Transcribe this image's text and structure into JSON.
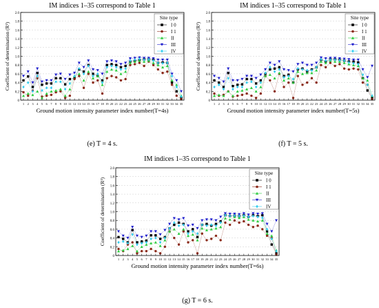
{
  "figure": {
    "panels": [
      {
        "caption": "(e) T = 4 s."
      },
      {
        "caption": "(f) T = 5 s."
      },
      {
        "caption": "(g) T = 6 s."
      }
    ]
  },
  "chart_data": [
    {
      "type": "line",
      "title": "IM indices 1–35 correspond to Table 1",
      "xlabel": "Ground motion intensity parameter index number(T=4s)",
      "ylabel": "Coefficient of determination (R²)",
      "ylim": [
        0,
        2.0
      ],
      "yticks": [
        "0",
        "0.2",
        "0.4",
        "0.6",
        "0.8",
        "1.0",
        "1.2",
        "1.4",
        "1.6",
        "1.8",
        "2.0"
      ],
      "legend": {
        "title": "Site type",
        "placement": "top-right"
      },
      "x": [
        1,
        2,
        3,
        4,
        5,
        6,
        7,
        8,
        9,
        10,
        11,
        12,
        13,
        14,
        15,
        16,
        17,
        18,
        19,
        20,
        21,
        22,
        23,
        24,
        25,
        26,
        27,
        28,
        29,
        30,
        31,
        32,
        33,
        34,
        35
      ],
      "series": [
        {
          "name": "I 0",
          "marker": "square",
          "color": "#000000",
          "values": [
            0.45,
            0.54,
            0.3,
            0.62,
            0.35,
            0.38,
            0.38,
            0.5,
            0.5,
            0.36,
            0.48,
            0.5,
            0.7,
            0.65,
            0.8,
            0.6,
            0.55,
            0.45,
            0.8,
            0.82,
            0.8,
            0.75,
            0.78,
            0.88,
            0.9,
            0.92,
            0.93,
            0.93,
            0.92,
            0.85,
            0.86,
            0.85,
            0.4,
            0.2,
            0.05
          ]
        },
        {
          "name": "I 1",
          "marker": "circle",
          "color": "#8b2a1a",
          "values": [
            0.18,
            0.1,
            0.22,
            0.5,
            0.08,
            0.1,
            0.12,
            0.18,
            0.2,
            0.05,
            0.1,
            0.48,
            0.55,
            0.28,
            0.6,
            0.4,
            0.45,
            0.15,
            0.5,
            0.55,
            0.52,
            0.45,
            0.48,
            0.8,
            0.82,
            0.85,
            0.78,
            0.88,
            0.8,
            0.7,
            0.62,
            0.65,
            0.35,
            0.1,
            0.02
          ]
        },
        {
          "name": "II",
          "marker": "triangle-up",
          "color": "#2ecc40",
          "values": [
            0.1,
            0.15,
            0.12,
            0.2,
            0.05,
            0.15,
            0.2,
            0.22,
            0.25,
            0.1,
            0.25,
            0.55,
            0.6,
            0.45,
            0.65,
            0.5,
            0.55,
            0.35,
            0.65,
            0.7,
            0.68,
            0.6,
            0.65,
            0.85,
            0.88,
            0.9,
            0.88,
            0.9,
            0.85,
            0.8,
            0.75,
            0.78,
            0.45,
            0.35,
            0.1
          ]
        },
        {
          "name": "III",
          "marker": "triangle-down",
          "color": "#1f1fcc",
          "values": [
            0.55,
            0.65,
            0.4,
            0.72,
            0.42,
            0.45,
            0.45,
            0.58,
            0.6,
            0.48,
            0.58,
            0.62,
            0.85,
            0.75,
            0.9,
            0.7,
            0.68,
            0.6,
            0.88,
            0.9,
            0.88,
            0.82,
            0.85,
            0.95,
            0.96,
            0.97,
            0.96,
            0.96,
            0.95,
            0.92,
            0.92,
            0.92,
            0.6,
            0.45,
            0.2
          ]
        },
        {
          "name": "IV",
          "marker": "diamond",
          "color": "#33ccee",
          "values": [
            0.3,
            0.4,
            0.2,
            0.55,
            0.22,
            0.28,
            0.28,
            0.42,
            0.42,
            0.25,
            0.38,
            0.55,
            0.72,
            0.6,
            0.78,
            0.55,
            0.6,
            0.4,
            0.75,
            0.78,
            0.75,
            0.7,
            0.72,
            0.9,
            0.92,
            0.94,
            0.92,
            0.93,
            0.9,
            0.85,
            0.84,
            0.85,
            0.55,
            0.3,
            0.08
          ]
        }
      ]
    },
    {
      "type": "line",
      "title": "IM indices 1–35 correspond to Table 1",
      "xlabel": "Ground motion intensity parameter index number(T=5s)",
      "ylabel": "Coefficient of determination (R²)",
      "ylim": [
        0,
        2.0
      ],
      "yticks": [
        "0",
        "0.2",
        "0.4",
        "0.6",
        "0.8",
        "1.0",
        "1.2",
        "1.4",
        "1.6",
        "1.8",
        "2.0"
      ],
      "legend": {
        "title": "Site type",
        "placement": "top-right"
      },
      "x": [
        1,
        2,
        3,
        4,
        5,
        6,
        7,
        8,
        9,
        10,
        11,
        12,
        13,
        14,
        15,
        16,
        17,
        18,
        19,
        20,
        21,
        22,
        23,
        24,
        25,
        26,
        27,
        28,
        29,
        30,
        31,
        32,
        33,
        34,
        35
      ],
      "series": [
        {
          "name": "I 0",
          "marker": "square",
          "color": "#000000",
          "values": [
            0.45,
            0.4,
            0.3,
            0.62,
            0.32,
            0.35,
            0.36,
            0.48,
            0.48,
            0.38,
            0.45,
            0.6,
            0.7,
            0.72,
            0.75,
            0.55,
            0.58,
            0.4,
            0.7,
            0.72,
            0.65,
            0.7,
            0.75,
            0.92,
            0.88,
            0.93,
            0.93,
            0.92,
            0.9,
            0.88,
            0.88,
            0.86,
            0.5,
            0.22,
            0.05
          ]
        },
        {
          "name": "I 1",
          "marker": "circle",
          "color": "#8b2a1a",
          "values": [
            0.15,
            0.1,
            0.12,
            0.2,
            0.08,
            0.1,
            0.12,
            0.15,
            0.1,
            0.05,
            0.15,
            0.55,
            0.45,
            0.2,
            0.6,
            0.3,
            0.4,
            0.05,
            0.55,
            0.35,
            0.4,
            0.5,
            0.4,
            0.8,
            0.75,
            0.85,
            0.78,
            0.82,
            0.72,
            0.7,
            0.72,
            0.7,
            0.4,
            0.35,
            0.02
          ]
        },
        {
          "name": "II",
          "marker": "triangle-up",
          "color": "#2ecc40",
          "values": [
            0.1,
            0.12,
            0.1,
            0.2,
            0.1,
            0.2,
            0.22,
            0.25,
            0.28,
            0.2,
            0.3,
            0.55,
            0.58,
            0.5,
            0.62,
            0.45,
            0.5,
            0.4,
            0.65,
            0.6,
            0.62,
            0.62,
            0.68,
            0.88,
            0.85,
            0.9,
            0.88,
            0.88,
            0.85,
            0.82,
            0.8,
            0.78,
            0.5,
            0.45,
            0.1
          ]
        },
        {
          "name": "III",
          "marker": "triangle-down",
          "color": "#1f1fcc",
          "values": [
            0.55,
            0.5,
            0.42,
            0.72,
            0.45,
            0.45,
            0.48,
            0.55,
            0.55,
            0.5,
            0.58,
            0.7,
            0.85,
            0.8,
            0.88,
            0.7,
            0.68,
            0.65,
            0.82,
            0.85,
            0.8,
            0.8,
            0.85,
            0.97,
            0.95,
            0.96,
            0.96,
            0.95,
            0.94,
            0.93,
            0.92,
            0.92,
            0.7,
            0.52,
            0.78
          ]
        },
        {
          "name": "IV",
          "marker": "diamond",
          "color": "#33ccee",
          "values": [
            0.3,
            0.35,
            0.25,
            0.5,
            0.25,
            0.3,
            0.3,
            0.4,
            0.42,
            0.3,
            0.4,
            0.62,
            0.75,
            0.65,
            0.7,
            0.52,
            0.55,
            0.48,
            0.72,
            0.7,
            0.68,
            0.68,
            0.75,
            0.93,
            0.9,
            0.92,
            0.92,
            0.91,
            0.9,
            0.86,
            0.84,
            0.82,
            0.58,
            0.35,
            0.1
          ]
        }
      ]
    },
    {
      "type": "line",
      "title": "IM indices 1–35 correspond to Table 1",
      "xlabel": "Ground motion intensity parameter index number(T=6s)",
      "ylabel": "Coefficient of determination (R²)",
      "ylim": [
        0,
        2.0
      ],
      "yticks": [
        "0",
        "0.2",
        "0.4",
        "0.6",
        "0.8",
        "1.0",
        "1.2",
        "1.4",
        "1.6",
        "1.8",
        "2.0"
      ],
      "legend": {
        "title": "Site type",
        "placement": "top-right"
      },
      "x": [
        1,
        2,
        3,
        4,
        5,
        6,
        7,
        8,
        9,
        10,
        11,
        12,
        13,
        14,
        15,
        16,
        17,
        18,
        19,
        20,
        21,
        22,
        23,
        24,
        25,
        26,
        27,
        28,
        29,
        30,
        31,
        32,
        33,
        34,
        35
      ],
      "series": [
        {
          "name": "I 0",
          "marker": "square",
          "color": "#000000",
          "values": [
            0.42,
            0.38,
            0.3,
            0.58,
            0.3,
            0.32,
            0.34,
            0.46,
            0.46,
            0.38,
            0.42,
            0.62,
            0.7,
            0.75,
            0.72,
            0.55,
            0.6,
            0.42,
            0.7,
            0.72,
            0.68,
            0.72,
            0.78,
            0.92,
            0.9,
            0.91,
            0.9,
            0.92,
            0.88,
            0.92,
            0.9,
            0.92,
            0.55,
            0.25,
            0.05
          ]
        },
        {
          "name": "I 1",
          "marker": "circle",
          "color": "#8b2a1a",
          "values": [
            0.15,
            0.1,
            0.25,
            0.3,
            0.05,
            0.1,
            0.1,
            0.15,
            0.1,
            0.05,
            0.2,
            0.55,
            0.4,
            0.25,
            0.55,
            0.3,
            0.35,
            0.05,
            0.5,
            0.35,
            0.38,
            0.45,
            0.35,
            0.75,
            0.7,
            0.8,
            0.75,
            0.78,
            0.7,
            0.65,
            0.68,
            0.6,
            0.45,
            0.4,
            0.02
          ]
        },
        {
          "name": "II",
          "marker": "triangle-up",
          "color": "#2ecc40",
          "values": [
            0.1,
            0.12,
            0.15,
            0.22,
            0.1,
            0.2,
            0.25,
            0.28,
            0.3,
            0.22,
            0.35,
            0.55,
            0.6,
            0.5,
            0.6,
            0.45,
            0.48,
            0.35,
            0.62,
            0.58,
            0.6,
            0.62,
            0.65,
            0.85,
            0.82,
            0.88,
            0.86,
            0.88,
            0.82,
            0.8,
            0.78,
            0.8,
            0.5,
            0.45,
            0.12
          ]
        },
        {
          "name": "III",
          "marker": "triangle-down",
          "color": "#1f1fcc",
          "values": [
            0.55,
            0.45,
            0.4,
            0.65,
            0.45,
            0.42,
            0.45,
            0.55,
            0.55,
            0.48,
            0.58,
            0.72,
            0.85,
            0.82,
            0.85,
            0.68,
            0.7,
            0.62,
            0.8,
            0.82,
            0.82,
            0.8,
            0.88,
            0.96,
            0.95,
            0.95,
            0.94,
            0.96,
            0.93,
            0.96,
            0.95,
            0.96,
            0.72,
            0.55,
            0.8
          ]
        },
        {
          "name": "IV",
          "marker": "diamond",
          "color": "#33ccee",
          "values": [
            0.3,
            0.32,
            0.28,
            0.48,
            0.25,
            0.28,
            0.3,
            0.38,
            0.4,
            0.3,
            0.4,
            0.62,
            0.75,
            0.68,
            0.7,
            0.5,
            0.55,
            0.5,
            0.7,
            0.68,
            0.7,
            0.68,
            0.75,
            0.92,
            0.9,
            0.91,
            0.9,
            0.91,
            0.88,
            0.9,
            0.88,
            0.86,
            0.6,
            0.38,
            0.1
          ]
        }
      ]
    }
  ]
}
